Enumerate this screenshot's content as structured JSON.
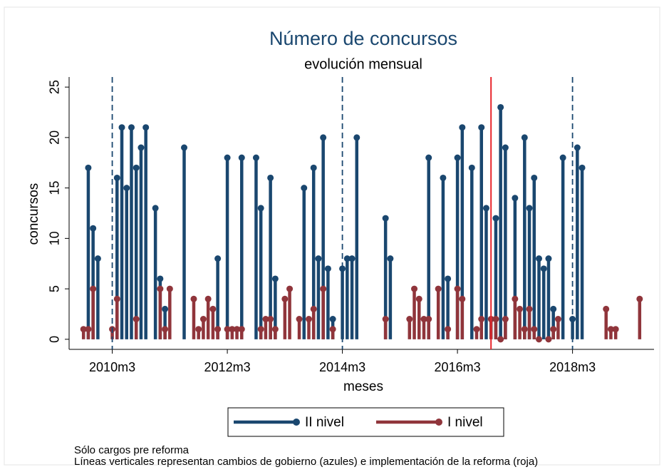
{
  "chart_data": {
    "type": "spike",
    "title": "Número de concursos",
    "subtitle": "evolución mensual",
    "x_label": "meses",
    "y_label": "concursos",
    "xlim": [
      593,
      715
    ],
    "ylim": [
      -1,
      26
    ],
    "xticks": [
      {
        "value": 602,
        "label": "2010m3"
      },
      {
        "value": 626,
        "label": "2012m3"
      },
      {
        "value": 650,
        "label": "2014m3"
      },
      {
        "value": 674,
        "label": "2016m3"
      },
      {
        "value": 698,
        "label": "2018m3"
      }
    ],
    "yticks": [
      0,
      5,
      10,
      15,
      20,
      25
    ],
    "vlines": [
      {
        "x": 602,
        "color": "#1a476f",
        "style": "dash"
      },
      {
        "x": 650,
        "color": "#1a476f",
        "style": "dash"
      },
      {
        "x": 698,
        "color": "#1a476f",
        "style": "dash"
      },
      {
        "x": 681,
        "color": "#e8262c",
        "style": "solid"
      }
    ],
    "series": [
      {
        "name": "II nivel",
        "color": "#1a476f",
        "x": [
          597,
          598,
          599,
          603,
          604,
          605,
          606,
          607,
          608,
          609,
          611,
          612,
          613,
          617,
          624,
          626,
          629,
          632,
          633,
          635,
          636,
          642,
          644,
          645,
          646,
          647,
          648,
          650,
          651,
          652,
          653,
          659,
          660,
          668,
          671,
          672,
          674,
          675,
          677,
          679,
          680,
          682,
          683,
          684,
          686,
          688,
          689,
          690,
          691,
          692,
          693,
          694,
          696,
          698,
          699,
          700
        ],
        "values": [
          17,
          11,
          8,
          16,
          21,
          15,
          21,
          17,
          19,
          21,
          13,
          6,
          3,
          19,
          8,
          18,
          18,
          18,
          13,
          16,
          6,
          15,
          17,
          8,
          20,
          7,
          2,
          7,
          8,
          8,
          20,
          12,
          8,
          18,
          16,
          6,
          18,
          21,
          17,
          21,
          13,
          12,
          23,
          19,
          14,
          20,
          13,
          16,
          8,
          7,
          8,
          3,
          18,
          2,
          19,
          17
        ]
      },
      {
        "name": "I nivel",
        "color": "#90353b",
        "x": [
          596,
          597,
          598,
          602,
          603,
          607,
          612,
          613,
          614,
          619,
          620,
          621,
          622,
          623,
          624,
          626,
          627,
          628,
          629,
          633,
          634,
          635,
          636,
          638,
          639,
          641,
          643,
          644,
          646,
          648,
          659,
          664,
          665,
          666,
          667,
          668,
          670,
          672,
          674,
          675,
          678,
          679,
          681,
          682,
          683,
          684,
          686,
          687,
          688,
          689,
          690,
          691,
          693,
          694,
          695,
          705,
          706,
          707,
          712
        ],
        "values": [
          1,
          1,
          5,
          1,
          4,
          2,
          5,
          1,
          5,
          4,
          1,
          2,
          4,
          3,
          1,
          1,
          1,
          1,
          1,
          1,
          2,
          2,
          1,
          4,
          5,
          2,
          2,
          3,
          5,
          1,
          2,
          2,
          5,
          4,
          2,
          2,
          5,
          1,
          5,
          4,
          1,
          2,
          2,
          2,
          0,
          2,
          4,
          3,
          1,
          3,
          1,
          0,
          0,
          1,
          2,
          3,
          1,
          1,
          4
        ]
      }
    ],
    "notes": [
      "Sólo cargos pre reforma",
      "Líneas verticales representan cambios de gobierno (azules) e implementación de la reforma (roja)"
    ]
  }
}
